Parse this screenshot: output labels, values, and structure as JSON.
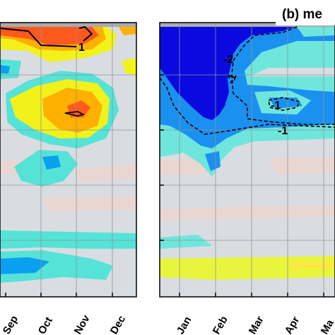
{
  "chart_data": [
    {
      "type": "heatmap",
      "panel": "a",
      "title": "",
      "xlabel": "",
      "ylabel": "",
      "categories": [
        "Sep",
        "Oct",
        "Nov",
        "Dec"
      ],
      "contours": [
        {
          "level": 1,
          "label": "1",
          "style": "solid"
        }
      ],
      "colors": {
        "background": "#d9dde2",
        "strong_positive": "#ff5a1e",
        "positive": "#ffb000",
        "weak_positive": "#f2f21a",
        "weak_negative": "#55e3d8",
        "negative": "#0aa0f0",
        "strong_negative": "#1515e6"
      }
    },
    {
      "type": "heatmap",
      "panel": "b",
      "title": "(b) me",
      "xlabel": "",
      "ylabel": "",
      "categories": [
        "Jan",
        "Feb",
        "Mar",
        "Apr",
        "Ma"
      ],
      "contours": [
        {
          "level": -2,
          "label": "-2",
          "style": "dashed"
        },
        {
          "level": -1,
          "label": "-1",
          "style": "dashed"
        },
        {
          "level": -1,
          "label": "-1",
          "style": "dashed"
        },
        {
          "level": -1,
          "label": "-1",
          "style": "dashed"
        }
      ],
      "colors": {
        "background": "#d9dde2",
        "strong_negative": "#0a0ae0",
        "negative": "#1a90f0",
        "weak_negative": "#6fe6dc",
        "weak_positive": "#e8f53c"
      }
    }
  ]
}
